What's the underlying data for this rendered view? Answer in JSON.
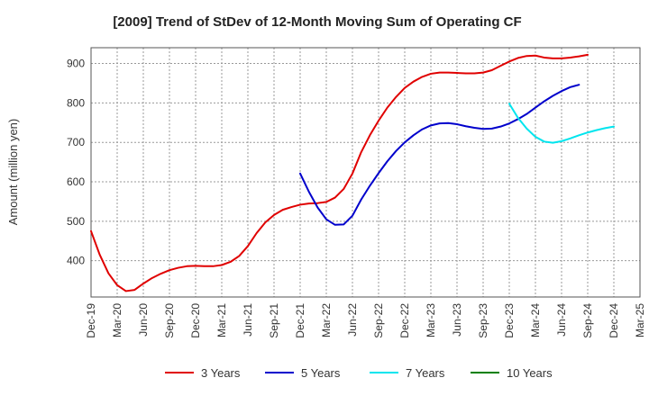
{
  "chart_data": {
    "type": "line",
    "title": "[2009]  Trend of StDev of 12-Month Moving Sum of Operating CF",
    "xlabel": "",
    "ylabel": "Amount (million yen)",
    "x_ticks": [
      "Dec-19",
      "Mar-20",
      "Jun-20",
      "Sep-20",
      "Dec-20",
      "Mar-21",
      "Jun-21",
      "Sep-21",
      "Dec-21",
      "Mar-22",
      "Jun-22",
      "Sep-22",
      "Dec-22",
      "Mar-23",
      "Jun-23",
      "Sep-23",
      "Dec-23",
      "Mar-24",
      "Jun-24",
      "Sep-24",
      "Dec-24",
      "Mar-25"
    ],
    "y_ticks": [
      400,
      500,
      600,
      700,
      800,
      900
    ],
    "ylim": [
      308,
      940
    ],
    "grid": true,
    "legend_position": "bottom",
    "colors": {
      "3y": "#e00000",
      "5y": "#0000cc",
      "7y": "#00e5ee",
      "10y": "#008000"
    },
    "series": [
      {
        "name": "3 Years",
        "color": "#e00000",
        "start_index": 0,
        "values": [
          475,
          415,
          368,
          338,
          323,
          326,
          342,
          356,
          367,
          376,
          382,
          386,
          387,
          386,
          386,
          389,
          397,
          412,
          437,
          470,
          497,
          516,
          529,
          536,
          542,
          545,
          546,
          549,
          560,
          582,
          621,
          675,
          718,
          755,
          788,
          815,
          838,
          854,
          866,
          874,
          877,
          877,
          876,
          875,
          875,
          877,
          883,
          894,
          905,
          914,
          919,
          920,
          915,
          913,
          913,
          915,
          918,
          922
        ]
      },
      {
        "name": "5 Years",
        "color": "#0000cc",
        "start_index": 24,
        "values": [
          621,
          575,
          535,
          505,
          491,
          492,
          514,
          555,
          590,
          622,
          652,
          678,
          700,
          718,
          733,
          743,
          748,
          749,
          746,
          741,
          737,
          734,
          735,
          740,
          748,
          759,
          772,
          788,
          804,
          818,
          830,
          840,
          846
        ]
      },
      {
        "name": "7 Years",
        "color": "#00e5ee",
        "start_index": 48,
        "values": [
          798,
          762,
          735,
          714,
          702,
          699,
          703,
          710,
          718,
          725,
          731,
          736,
          740
        ]
      },
      {
        "name": "10 Years",
        "color": "#008000",
        "start_index": 0,
        "values": []
      }
    ]
  }
}
